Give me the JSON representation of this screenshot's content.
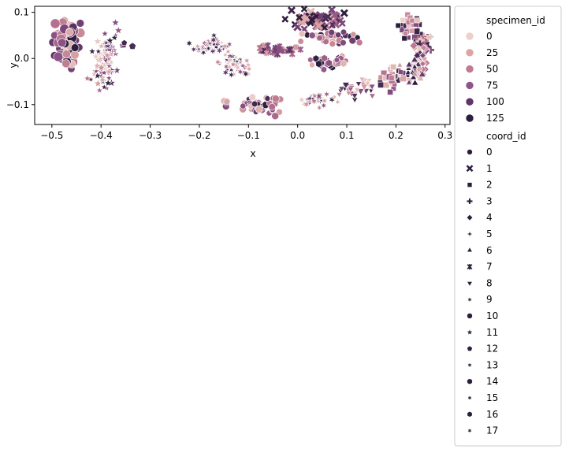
{
  "chart_data": {
    "type": "scatter",
    "xlabel": "x",
    "ylabel": "y",
    "xlim": [
      -0.535,
      0.31
    ],
    "ylim": [
      -0.143,
      0.113
    ],
    "xticks": [
      -0.5,
      -0.4,
      -0.3,
      -0.2,
      -0.1,
      0.0,
      0.1,
      0.2,
      0.3
    ],
    "xtick_labels": [
      "−0.5",
      "−0.4",
      "−0.3",
      "−0.2",
      "−0.1",
      "0.0",
      "0.1",
      "0.2",
      "0.3"
    ],
    "yticks": [
      0.1,
      0.0,
      -0.1
    ],
    "ytick_labels": [
      "0.1",
      "0.0",
      "−0.1"
    ],
    "grid": false,
    "legend": {
      "placement": "outside-right",
      "hue_title": "specimen_id",
      "hue_entries": [
        {
          "label": "0",
          "color": "#ecd0c9"
        },
        {
          "label": "25",
          "color": "#daa5a4"
        },
        {
          "label": "50",
          "color": "#bf7b90"
        },
        {
          "label": "75",
          "color": "#915487"
        },
        {
          "label": "100",
          "color": "#5f3567"
        },
        {
          "label": "125",
          "color": "#2d1e3e"
        }
      ],
      "style_title": "coord_id",
      "style_entries": [
        "0",
        "1",
        "2",
        "3",
        "4",
        "5",
        "6",
        "7",
        "8",
        "9",
        "10",
        "11",
        "12",
        "13",
        "14",
        "15",
        "16",
        "17"
      ]
    },
    "marker_for_coord": [
      "circle",
      "x",
      "square",
      "plus",
      "diamond",
      "star4",
      "triangle-up",
      "tri-x",
      "triangle-down",
      "asterisk",
      "octagon",
      "star",
      "pentagon",
      "asterisk",
      "circle",
      "asterisk",
      "hexagon",
      "asterisk"
    ],
    "hue_range": [
      0,
      135
    ],
    "clusters": [
      {
        "coord_id": 0,
        "x": -0.468,
        "y": 0.03,
        "sx": 0.013,
        "sy": 0.024,
        "n": 70
      },
      {
        "coord_id": 11,
        "x": -0.392,
        "y": 0.0,
        "sx": 0.011,
        "sy": 0.032,
        "n": 80,
        "tilt": -2.2
      },
      {
        "coord_id": 12,
        "x": -0.34,
        "y": 0.025,
        "sx": 0.02,
        "sy": 0.006,
        "n": 4
      },
      {
        "coord_id": 9,
        "x": -0.175,
        "y": 0.028,
        "sx": 0.018,
        "sy": 0.009,
        "n": 45
      },
      {
        "coord_id": 15,
        "x": -0.127,
        "y": -0.015,
        "sx": 0.017,
        "sy": 0.013,
        "n": 45
      },
      {
        "coord_id": 14,
        "x": -0.148,
        "y": -0.1,
        "sx": 0.004,
        "sy": 0.008,
        "n": 4
      },
      {
        "coord_id": 10,
        "x": -0.075,
        "y": -0.103,
        "sx": 0.02,
        "sy": 0.01,
        "n": 45
      },
      {
        "coord_id": 1,
        "x": 0.03,
        "y": 0.083,
        "sx": 0.03,
        "sy": 0.01,
        "n": 55
      },
      {
        "coord_id": 7,
        "x": -0.04,
        "y": 0.018,
        "sx": 0.022,
        "sy": 0.005,
        "n": 30
      },
      {
        "coord_id": 14,
        "x": 0.065,
        "y": 0.045,
        "sx": 0.03,
        "sy": 0.006,
        "n": 40
      },
      {
        "coord_id": 16,
        "x": 0.062,
        "y": -0.008,
        "sx": 0.02,
        "sy": 0.006,
        "n": 35
      },
      {
        "coord_id": 13,
        "x": 0.045,
        "y": -0.088,
        "sx": 0.015,
        "sy": 0.008,
        "n": 35
      },
      {
        "coord_id": 8,
        "x": 0.12,
        "y": -0.065,
        "sx": 0.016,
        "sy": 0.01,
        "n": 30
      },
      {
        "coord_id": 2,
        "x": 0.195,
        "y": -0.04,
        "sx": 0.013,
        "sy": 0.013,
        "n": 35
      },
      {
        "coord_id": 2,
        "x": 0.232,
        "y": 0.065,
        "sx": 0.013,
        "sy": 0.014,
        "n": 40
      },
      {
        "coord_id": 3,
        "x": 0.255,
        "y": 0.03,
        "sx": 0.008,
        "sy": 0.014,
        "n": 30
      },
      {
        "coord_id": 4,
        "x": 0.25,
        "y": -0.005,
        "sx": 0.01,
        "sy": 0.015,
        "n": 30
      },
      {
        "coord_id": 6,
        "x": 0.232,
        "y": -0.025,
        "sx": 0.009,
        "sy": 0.013,
        "n": 25
      }
    ]
  }
}
